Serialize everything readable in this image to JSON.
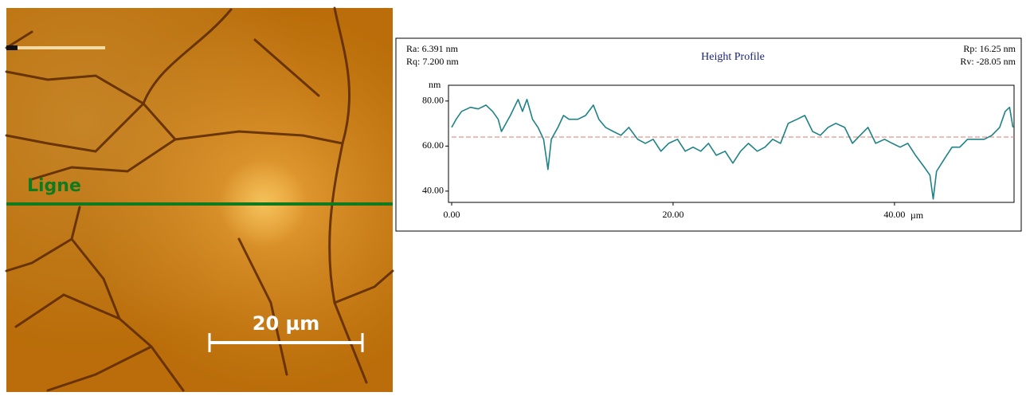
{
  "image": {
    "line_label": "Ligne",
    "scale_bar": "20 µm"
  },
  "chart_data": {
    "type": "line",
    "title": "Height Profile",
    "stats": {
      "ra": "Ra: 6.391 nm",
      "rq": "Rq: 7.200 nm",
      "rp": "Rp: 16.25 nm",
      "rv": "Rv: -28.05 nm"
    },
    "y_label": "nm",
    "x_label": "µm",
    "xlim": [
      0,
      50.8
    ],
    "ylim": [
      35,
      87
    ],
    "xticks": [
      {
        "value": 0,
        "label": "0.00"
      },
      {
        "value": 20,
        "label": "20.00"
      },
      {
        "value": 40,
        "label": "40.00"
      }
    ],
    "yticks": [
      {
        "value": 40,
        "label": "40.00"
      },
      {
        "value": 60,
        "label": "60.00"
      },
      {
        "value": 80,
        "label": "80.00"
      }
    ],
    "reference_line": {
      "value": 64,
      "color": "#e07a6e"
    },
    "series": [
      {
        "color": "#1e8286",
        "x": [
          0,
          0.4,
          0.9,
          1.7,
          2.4,
          3.1,
          3.7,
          4.2,
          4.5,
          5.3,
          6.0,
          6.4,
          6.8,
          7.3,
          7.8,
          8.3,
          8.7,
          9.0,
          9.6,
          10.1,
          10.6,
          11.4,
          12.1,
          12.8,
          13.3,
          13.9,
          14.6,
          15.3,
          16.0,
          16.8,
          17.5,
          18.2,
          18.9,
          19.6,
          20.4,
          21.1,
          21.8,
          22.5,
          23.2,
          23.9,
          24.7,
          25.4,
          26.1,
          26.8,
          27.6,
          28.3,
          29.0,
          29.7,
          30.4,
          31.2,
          31.9,
          32.6,
          33.3,
          34.0,
          34.7,
          35.5,
          36.2,
          36.9,
          37.6,
          38.3,
          39.1,
          39.8,
          40.5,
          41.2,
          41.9,
          42.7,
          43.2,
          43.5,
          43.8,
          44.5,
          45.2,
          45.9,
          46.6,
          47.3,
          48.1,
          48.8,
          49.5,
          50.0,
          50.4,
          50.7
        ],
        "values": [
          68.3,
          71.9,
          75.4,
          77.2,
          76.5,
          78.2,
          75.4,
          71.9,
          66.5,
          73.6,
          80.7,
          75.4,
          80.7,
          71.9,
          68.3,
          63.0,
          49.6,
          63.0,
          68.3,
          73.6,
          71.9,
          71.9,
          73.6,
          78.2,
          71.9,
          68.3,
          66.5,
          64.8,
          68.3,
          63.0,
          61.2,
          63.0,
          57.7,
          61.2,
          63.0,
          57.7,
          59.5,
          57.7,
          61.2,
          55.9,
          57.7,
          52.4,
          57.7,
          61.2,
          57.7,
          59.5,
          63.0,
          61.2,
          70.1,
          71.9,
          73.6,
          66.5,
          64.8,
          68.3,
          70.1,
          68.3,
          61.2,
          64.8,
          68.3,
          61.2,
          63.0,
          61.2,
          59.5,
          61.2,
          55.9,
          50.6,
          47.1,
          36.5,
          48.8,
          54.2,
          59.5,
          59.5,
          63.0,
          63.0,
          63.0,
          64.8,
          68.3,
          75.4,
          77.2,
          68.3
        ]
      }
    ]
  }
}
